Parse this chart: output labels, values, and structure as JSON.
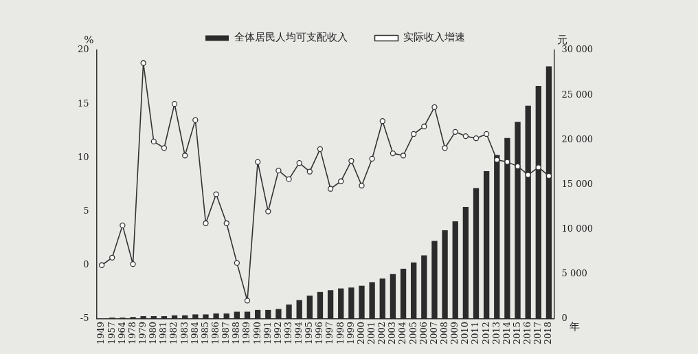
{
  "chart_data": {
    "type": "bar",
    "xlabel": "年",
    "ylabel": "%",
    "y2label": "元",
    "categories": [
      "1949",
      "1957",
      "1964",
      "1978",
      "1979",
      "1980",
      "1981",
      "1982",
      "1983",
      "1984",
      "1985",
      "1986",
      "1987",
      "1988",
      "1989",
      "1990",
      "1991",
      "1992",
      "1993",
      "1994",
      "1995",
      "1996",
      "1997",
      "1998",
      "1999",
      "2000",
      "2001",
      "2002",
      "2003",
      "2004",
      "2005",
      "2006",
      "2007",
      "2008",
      "2009",
      "2010",
      "2011",
      "2012",
      "2013",
      "2014",
      "2015",
      "2016",
      "2017",
      "2018"
    ],
    "series": [
      {
        "name": "全体居民人均可支配收入",
        "axis": "y2",
        "color": "#2b2b2b",
        "values": [
          null,
          150,
          150,
          200,
          300,
          300,
          300,
          400,
          400,
          500,
          500,
          600,
          600,
          800,
          800,
          1000,
          1000,
          1100,
          1600,
          2100,
          2600,
          3000,
          3200,
          3400,
          3500,
          3700,
          4100,
          4500,
          5000,
          5600,
          6300,
          7100,
          8700,
          9900,
          10900,
          12500,
          14600,
          16500,
          18300,
          20200,
          22000,
          23800,
          26000,
          28200
        ]
      },
      {
        "name": "实际收入增速",
        "type": "line",
        "color": "#333333",
        "values": [
          0,
          0.7,
          3.7,
          0.1,
          18.8,
          11.5,
          10.9,
          15.0,
          10.2,
          13.5,
          3.9,
          6.6,
          3.9,
          0.2,
          -3.3,
          9.6,
          5.0,
          8.8,
          8.0,
          9.5,
          8.7,
          10.8,
          7.1,
          7.8,
          9.7,
          7.4,
          9.9,
          13.4,
          10.4,
          10.2,
          12.2,
          12.9,
          14.7,
          10.9,
          12.4,
          12.0,
          11.8,
          12.2,
          9.8,
          9.6,
          9.2,
          8.4,
          9.1,
          8.3
        ]
      }
    ],
    "ylim": [
      -5,
      20
    ],
    "yticks": [
      -5,
      0,
      5,
      10,
      15,
      20
    ],
    "y2lim": [
      0,
      30000
    ],
    "y2ticks": [
      0,
      {
        "value": 5000,
        "label": "5 000"
      },
      {
        "value": 10000,
        "label": "10 000"
      },
      {
        "value": 15000,
        "label": "15 000"
      },
      {
        "value": 20000,
        "label": "20 000"
      },
      {
        "value": 25000,
        "label": "25 000"
      },
      {
        "value": 30000,
        "label": "30 000"
      }
    ],
    "marker": "circle",
    "line_style": "solid",
    "grid": false,
    "legend": "top"
  }
}
